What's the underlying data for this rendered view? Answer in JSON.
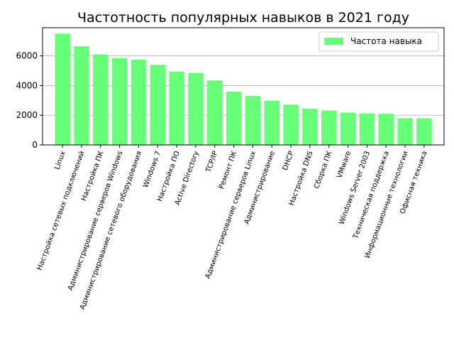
{
  "chart_data": {
    "type": "bar",
    "title": "Частотность популярных навыков в 2021 году",
    "xlabel": "",
    "ylabel": "",
    "categories": [
      "Linux",
      "Настройка сетевых подключений",
      "Настройка ПК",
      "Администрирование серверов Windows",
      "Администрирование сетевого оборудования",
      "Windows 7",
      "Настройка ПО",
      "Active Directory",
      "TCP/IP",
      "Ремонт ПК",
      "Администрирование серверов Linux",
      "Администрирование",
      "DHCP",
      "Настройка DNS",
      "Сборка ПК",
      "VMware",
      "Windows Server 2003",
      "Техническая поддержка",
      "Информационные технологии",
      "Офисная техника"
    ],
    "series": [
      {
        "name": "Частота навыка",
        "color": "#66ff77",
        "values": [
          7500,
          6650,
          6100,
          5850,
          5750,
          5400,
          4950,
          4850,
          4350,
          3600,
          3300,
          2980,
          2720,
          2450,
          2320,
          2180,
          2130,
          2100,
          1800,
          1800
        ]
      }
    ],
    "ylim": [
      0,
      7900
    ],
    "yticks": [
      0,
      2000,
      4000,
      6000
    ],
    "grid": "y",
    "legend_position": "top-right"
  }
}
